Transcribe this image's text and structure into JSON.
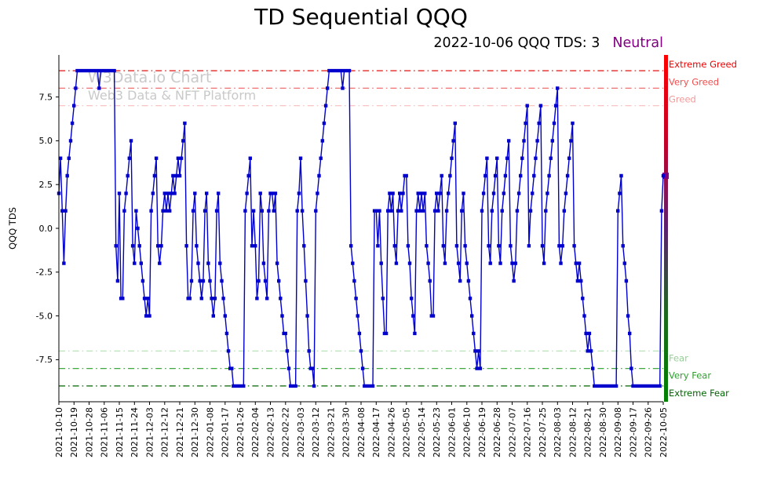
{
  "header": {
    "title": "TD Sequential QQQ",
    "subtitle_text": "2022-10-06 QQQ TDS: 3",
    "subtitle_status": "Neutral",
    "subtitle_status_color": "#800080"
  },
  "watermark": {
    "line1": "W3Data.io Chart",
    "line2": "Web3 Data & NFT Platform",
    "color": "#c9c9c9"
  },
  "chart_data": {
    "type": "line",
    "title": "TD Sequential QQQ",
    "xlabel": "",
    "ylabel": "QQQ TDS",
    "ylim": [
      -9.9,
      9.9
    ],
    "grid": false,
    "legend": "none",
    "line_color": "#0000cd",
    "marker": "square",
    "series_name": "QQQ TDS",
    "x_tick_interval_days": 9,
    "x_tick_labels": [
      "2021-10-10",
      "2021-10-19",
      "2021-10-28",
      "2021-11-06",
      "2021-11-15",
      "2021-11-24",
      "2021-12-03",
      "2021-12-12",
      "2021-12-21",
      "2021-12-30",
      "2022-01-08",
      "2022-01-17",
      "2022-01-26",
      "2022-02-04",
      "2022-02-13",
      "2022-02-22",
      "2022-03-03",
      "2022-03-12",
      "2022-03-21",
      "2022-03-30",
      "2022-04-08",
      "2022-04-17",
      "2022-04-26",
      "2022-05-05",
      "2022-05-14",
      "2022-05-23",
      "2022-06-01",
      "2022-06-10",
      "2022-06-19",
      "2022-06-28",
      "2022-07-07",
      "2022-07-16",
      "2022-07-25",
      "2022-08-03",
      "2022-08-12",
      "2022-08-21",
      "2022-08-30",
      "2022-09-08",
      "2022-09-17",
      "2022-09-26",
      "2022-10-05"
    ],
    "yticks": [
      {
        "value": 7.5,
        "label": "7.5"
      },
      {
        "value": 5.0,
        "label": "5.0"
      },
      {
        "value": 2.5,
        "label": "2.5"
      },
      {
        "value": 0.0,
        "label": "0.0"
      },
      {
        "value": -2.5,
        "label": "-2.5"
      },
      {
        "value": -5.0,
        "label": "-5.0"
      },
      {
        "value": -7.5,
        "label": "-7.5"
      }
    ],
    "values": [
      2,
      4,
      1,
      -2,
      1,
      3,
      4,
      5,
      6,
      7,
      8,
      9,
      9,
      9,
      9,
      9,
      9,
      9,
      9,
      9,
      9,
      9,
      9,
      9,
      8,
      9,
      9,
      9,
      9,
      9,
      9,
      9,
      9,
      9,
      -1,
      -3,
      2,
      -4,
      -4,
      1,
      2,
      3,
      4,
      5,
      -1,
      -2,
      1,
      0,
      -1,
      -2,
      -3,
      -4,
      -5,
      -4,
      -5,
      1,
      2,
      3,
      4,
      -1,
      -2,
      -1,
      1,
      2,
      1,
      2,
      1,
      2,
      3,
      2,
      3,
      4,
      3,
      4,
      5,
      6,
      -1,
      -4,
      -4,
      -3,
      1,
      2,
      -1,
      -2,
      -3,
      -4,
      -3,
      1,
      2,
      -2,
      -3,
      -4,
      -5,
      -4,
      1,
      2,
      -2,
      -3,
      -4,
      -5,
      -6,
      -7,
      -8,
      -8,
      -9,
      -9,
      -9,
      -9,
      -9,
      -9,
      -9,
      1,
      2,
      3,
      4,
      -1,
      1,
      -1,
      -4,
      -3,
      2,
      1,
      -2,
      -3,
      -4,
      1,
      2,
      2,
      1,
      2,
      -2,
      -3,
      -4,
      -5,
      -6,
      -6,
      -7,
      -8,
      -9,
      -9,
      -9,
      -9,
      1,
      2,
      4,
      1,
      -1,
      -3,
      -5,
      -7,
      -8,
      -8,
      -9,
      1,
      2,
      3,
      4,
      5,
      6,
      7,
      8,
      9,
      9,
      9,
      9,
      9,
      9,
      9,
      9,
      8,
      9,
      9,
      9,
      9,
      -1,
      -2,
      -3,
      -4,
      -5,
      -6,
      -7,
      -8,
      -9,
      -9,
      -9,
      -9,
      -9,
      -9,
      1,
      1,
      -1,
      1,
      -2,
      -4,
      -6,
      -6,
      1,
      2,
      1,
      2,
      -1,
      -2,
      1,
      2,
      1,
      2,
      3,
      3,
      -1,
      -2,
      -4,
      -5,
      -6,
      1,
      2,
      1,
      2,
      1,
      2,
      -1,
      -2,
      -3,
      -5,
      -5,
      1,
      2,
      1,
      2,
      3,
      -1,
      -2,
      1,
      2,
      3,
      4,
      5,
      6,
      -1,
      -2,
      -3,
      1,
      2,
      -1,
      -2,
      -3,
      -4,
      -5,
      -6,
      -7,
      -8,
      -7,
      -8,
      1,
      2,
      3,
      4,
      -1,
      -2,
      1,
      2,
      3,
      4,
      -1,
      -2,
      1,
      2,
      3,
      4,
      5,
      -1,
      -2,
      -3,
      -2,
      1,
      2,
      3,
      4,
      5,
      6,
      7,
      -1,
      1,
      2,
      3,
      4,
      5,
      6,
      7,
      -1,
      -2,
      1,
      2,
      3,
      4,
      5,
      6,
      7,
      8,
      -1,
      -2,
      -1,
      1,
      2,
      3,
      4,
      5,
      6,
      -1,
      -2,
      -3,
      -2,
      -3,
      -4,
      -5,
      -6,
      -7,
      -6,
      -7,
      -8,
      -9,
      -9,
      -9,
      -9,
      -9,
      -9,
      -9,
      -9,
      -9,
      -9,
      -9,
      -9,
      -9,
      -9,
      1,
      2,
      3,
      -1,
      -2,
      -3,
      -5,
      -6,
      -8,
      -9,
      -9,
      -9,
      -9,
      -9,
      -9,
      -9,
      -9,
      -9,
      -9,
      -9,
      -9,
      -9,
      -9,
      -9,
      -9,
      -9,
      1,
      3
    ],
    "thresholds": [
      {
        "value": 9,
        "label": "Extreme Greed",
        "line_color": "#e01010",
        "label_color": "#ee0000"
      },
      {
        "value": 8,
        "label": "Very Greed",
        "line_color": "#f07070",
        "label_color": "#f25050"
      },
      {
        "value": 7,
        "label": "Greed",
        "line_color": "#f8bcbc",
        "label_color": "#f59a9a"
      },
      {
        "value": -7,
        "label": "Fear",
        "line_color": "#b4dfb4",
        "label_color": "#97d097"
      },
      {
        "value": -8,
        "label": "Very Fear",
        "line_color": "#3fa73f",
        "label_color": "#2f9e2f"
      },
      {
        "value": -9,
        "label": "Extreme Fear",
        "line_color": "#006400",
        "label_color": "#006400"
      }
    ],
    "current_marker": {
      "value": 3,
      "color": "#800080"
    },
    "right_scale_bar": {
      "colors": [
        "#ff0000",
        "#c40028",
        "#5c2070",
        "#1c6a1c",
        "#008000"
      ]
    }
  }
}
